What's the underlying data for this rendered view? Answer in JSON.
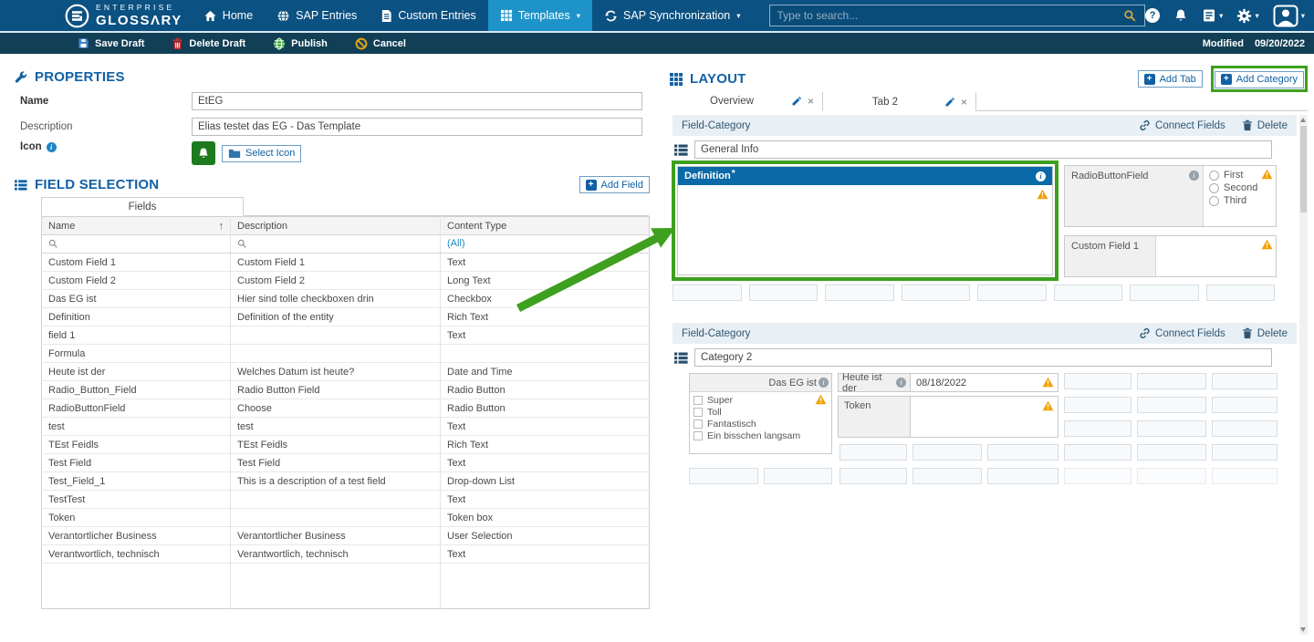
{
  "icons": {
    "caret": "▾",
    "sort_asc": "↑",
    "close": "×",
    "info": "i",
    "help": "?",
    "plus": "+"
  },
  "colors": {
    "navbar": "#0b5181",
    "active_nav": "#1d93c9",
    "toolbar": "#113f56",
    "accent_blue": "#1160a5",
    "field_header_blue": "#0a6aa7",
    "annotation_green": "#3ea01e",
    "warning_orange": "#f2a100",
    "icon_preview_green": "#1d7a1d"
  },
  "navbar": {
    "brand_line1": "ENTERPRISE",
    "brand_line2": "GLOSSΛRY",
    "items": [
      {
        "label": "Home"
      },
      {
        "label": "SAP Entries"
      },
      {
        "label": "Custom Entries"
      },
      {
        "label": "Templates"
      },
      {
        "label": "SAP Synchronization"
      }
    ],
    "search_placeholder": "Type to search..."
  },
  "toolbar": {
    "save_label": "Save Draft",
    "delete_label": "Delete Draft",
    "publish_label": "Publish",
    "cancel_label": "Cancel",
    "modified_label": "Modified",
    "modified_date": "09/20/2022"
  },
  "properties": {
    "title": "PROPERTIES",
    "name_label": "Name",
    "name_value": "EtEG",
    "description_label": "Description",
    "description_value": "Elias testet das EG - Das Template",
    "icon_label": "Icon",
    "select_icon_label": "Select Icon"
  },
  "field_selection": {
    "title": "FIELD SELECTION",
    "add_field_label": "Add Field",
    "tab_label": "Fields",
    "columns": [
      "Name",
      "Description",
      "Content Type"
    ],
    "filter_all": "(All)",
    "rows": [
      {
        "name": "Custom Field 1",
        "description": "Custom Field 1",
        "content_type": "Text"
      },
      {
        "name": "Custom Field 2",
        "description": "Custom Field 2",
        "content_type": "Long Text"
      },
      {
        "name": "Das EG ist",
        "description": "Hier sind tolle checkboxen drin",
        "content_type": "Checkbox"
      },
      {
        "name": "Definition",
        "description": "Definition of the entity",
        "content_type": "Rich Text"
      },
      {
        "name": "field 1",
        "description": "",
        "content_type": "Text"
      },
      {
        "name": "Formula",
        "description": "",
        "content_type": ""
      },
      {
        "name": "Heute ist der",
        "description": "Welches Datum ist heute?",
        "content_type": "Date and Time"
      },
      {
        "name": "Radio_Button_Field",
        "description": "Radio Button Field",
        "content_type": "Radio Button"
      },
      {
        "name": "RadioButtonField",
        "description": "Choose",
        "content_type": "Radio Button"
      },
      {
        "name": "test",
        "description": "test",
        "content_type": "Text"
      },
      {
        "name": "TEst Feidls",
        "description": "TEst Feidls",
        "content_type": "Rich Text"
      },
      {
        "name": "Test Field",
        "description": "Test Field",
        "content_type": "Text"
      },
      {
        "name": "Test_Field_1",
        "description": "This is a description of a test field",
        "content_type": "Drop-down List"
      },
      {
        "name": "TestTest",
        "description": "",
        "content_type": "Text"
      },
      {
        "name": "Token",
        "description": "",
        "content_type": "Token box"
      },
      {
        "name": "Verantortlicher Business",
        "description": "Verantortlicher Business",
        "content_type": "User Selection"
      },
      {
        "name": "Verantwortlich, technisch",
        "description": "Verantwortlich, technisch",
        "content_type": "Text"
      }
    ]
  },
  "layout": {
    "title": "LAYOUT",
    "add_tab_label": "Add Tab",
    "add_category_label": "Add Category",
    "tabs": [
      "Overview",
      "Tab 2"
    ],
    "category_header_label": "Field-Category",
    "connect_fields_label": "Connect Fields",
    "delete_label": "Delete",
    "category1": {
      "name": "General Info",
      "definition_field": {
        "label": "Definition",
        "required": "*"
      },
      "radio_field": {
        "label": "RadioButtonField",
        "options": [
          "First",
          "Second",
          "Third"
        ]
      },
      "custom_field": {
        "label": "Custom Field 1"
      }
    },
    "category2": {
      "name": "Category 2",
      "checkbox_field": {
        "label": "Das EG ist",
        "options": [
          "Super",
          "Toll",
          "Fantastisch",
          "Ein bisschen langsam"
        ]
      },
      "date_field": {
        "label": "Heute ist der",
        "value": "08/18/2022"
      },
      "token_field": {
        "label": "Token"
      }
    }
  }
}
